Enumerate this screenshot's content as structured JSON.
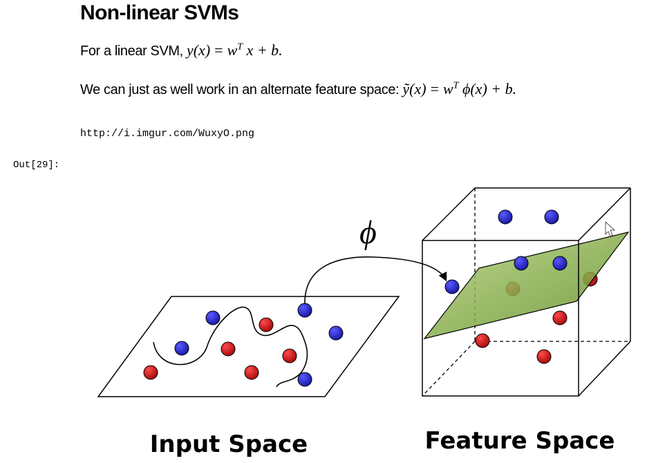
{
  "markdown": {
    "heading": "Non-linear SVMs",
    "para1": {
      "text": "For a linear SVM, ",
      "math": {
        "lhs": "y(x)",
        "eq": "=",
        "w": "w",
        "sup": "T",
        "rhs": "x + b."
      }
    },
    "para2": {
      "text": "We can just as well work in an alternate feature space: ",
      "math": {
        "lhs": "ỹ(x)",
        "eq": "=",
        "w": "w",
        "sup": "T",
        "rhs": "ϕ(x) + b."
      }
    }
  },
  "code_cell": {
    "text": "http://i.imgur.com/WuxyO.png"
  },
  "output": {
    "prompt": "Out[29]:"
  },
  "figure": {
    "mapping_symbol": "ϕ",
    "input_caption": "Input Space",
    "feature_caption": "Feature Space",
    "colors": {
      "blue_point": "#2323d0",
      "red_point": "#d01313",
      "plane": "#8fb54a"
    }
  }
}
